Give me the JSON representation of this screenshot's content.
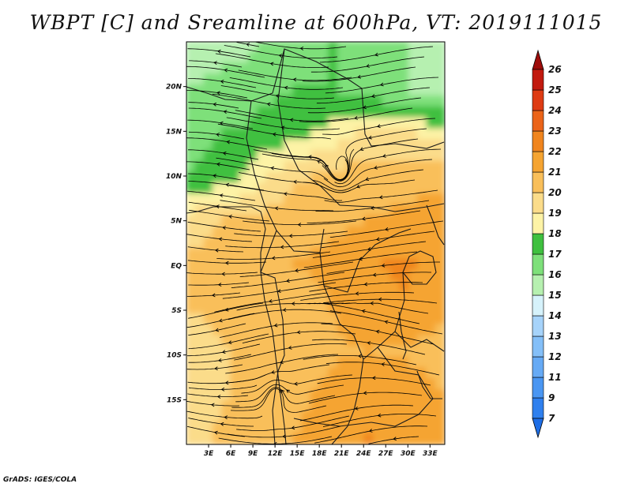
{
  "title": "WBPT [C] and Sreamline at 600hPa, VT: 2019111015",
  "credit": "GrADS: IGES/COLA",
  "map": {
    "lon_range": [
      0,
      35
    ],
    "lat_range": [
      -20,
      25
    ],
    "lat_ticks": [
      {
        "value": 20,
        "label": "20N"
      },
      {
        "value": 15,
        "label": "15N"
      },
      {
        "value": 10,
        "label": "10N"
      },
      {
        "value": 5,
        "label": "5N"
      },
      {
        "value": 0,
        "label": "EQ"
      },
      {
        "value": -5,
        "label": "5S"
      },
      {
        "value": -10,
        "label": "10S"
      },
      {
        "value": -15,
        "label": "15S"
      }
    ],
    "lon_ticks": [
      {
        "value": 3,
        "label": "3E"
      },
      {
        "value": 6,
        "label": "6E"
      },
      {
        "value": 9,
        "label": "9E"
      },
      {
        "value": 12,
        "label": "12E"
      },
      {
        "value": 15,
        "label": "15E"
      },
      {
        "value": 18,
        "label": "18E"
      },
      {
        "value": 21,
        "label": "21E"
      },
      {
        "value": 24,
        "label": "24E"
      },
      {
        "value": 27,
        "label": "27E"
      },
      {
        "value": 30,
        "label": "30E"
      },
      {
        "value": 33,
        "label": "33E"
      }
    ]
  },
  "colorbar": {
    "levels": [
      {
        "label": "7",
        "color": "#1e6ee6"
      },
      {
        "label": "9",
        "color": "#2f80ee"
      },
      {
        "label": "11",
        "color": "#4a96f2"
      },
      {
        "label": "12",
        "color": "#66aaf5"
      },
      {
        "label": "13",
        "color": "#84bff8"
      },
      {
        "label": "14",
        "color": "#a6d3fa"
      },
      {
        "label": "15",
        "color": "#d6f2fb"
      },
      {
        "label": "16",
        "color": "#b6f0b0"
      },
      {
        "label": "17",
        "color": "#7ee07a"
      },
      {
        "label": "18",
        "color": "#3fc03f"
      },
      {
        "label": "19",
        "color": "#fdf3a6"
      },
      {
        "label": "20",
        "color": "#fbdc8a"
      },
      {
        "label": "21",
        "color": "#f9bf5a"
      },
      {
        "label": "22",
        "color": "#f5a431"
      },
      {
        "label": "23",
        "color": "#f0851e"
      },
      {
        "label": "24",
        "color": "#eb6419"
      },
      {
        "label": "25",
        "color": "#de3b13"
      },
      {
        "label": "26",
        "color": "#c21a0f"
      }
    ],
    "top_color": "#9e0c0a"
  },
  "wbpt_field": [
    [
      16,
      16.5,
      17,
      17.5,
      18,
      17.5,
      17,
      16.5
    ],
    [
      17.2,
      17.5,
      17.8,
      18,
      18,
      17.5,
      17,
      16.6
    ],
    [
      17.8,
      18,
      18.2,
      18.7,
      19.5,
      20.2,
      20.2,
      19.5
    ],
    [
      18,
      18.5,
      19.8,
      20.8,
      21.3,
      21.6,
      21.7,
      21.6
    ],
    [
      20.5,
      21,
      21.3,
      21.6,
      21.8,
      22,
      22.2,
      22.5
    ],
    [
      21.2,
      21.5,
      21.8,
      22,
      22.2,
      22.8,
      23.2,
      22.5
    ],
    [
      21,
      21.3,
      21.5,
      21.7,
      22,
      22.5,
      22.8,
      22.3
    ],
    [
      20.6,
      20.9,
      21.4,
      21.7,
      21.9,
      22,
      21.9,
      21.6
    ],
    [
      20.5,
      20.9,
      21.5,
      21.8,
      22.2,
      22.6,
      22.6,
      22
    ],
    [
      20.5,
      21.3,
      21.7,
      22,
      22.5,
      23,
      22.6,
      22
    ]
  ]
}
